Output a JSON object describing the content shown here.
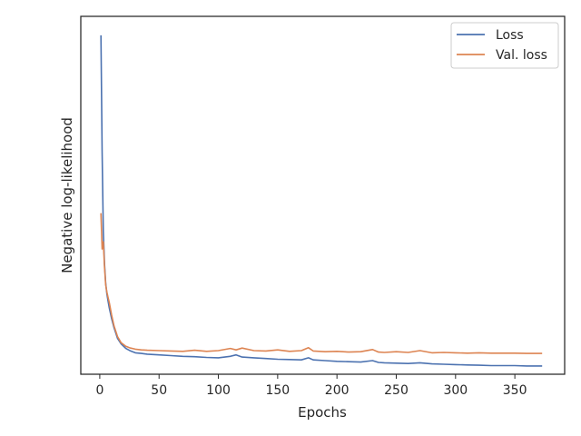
{
  "chart_data": {
    "type": "line",
    "title": "",
    "xlabel": "Epochs",
    "ylabel": "Negative log-likelihood",
    "xlim": [
      -16,
      392
    ],
    "ylim": [
      0,
      1
    ],
    "x_ticks": [
      0,
      50,
      100,
      150,
      200,
      250,
      300,
      350
    ],
    "x_tick_labels": [
      "0",
      "50",
      "100",
      "150",
      "200",
      "250",
      "300",
      "350"
    ],
    "y_ticks_shown": false,
    "grid": false,
    "legend_position": "top-right",
    "series": [
      {
        "name": "Loss",
        "color": "#4c72b0",
        "points": [
          [
            1,
            0.947
          ],
          [
            2,
            0.62
          ],
          [
            3,
            0.4
          ],
          [
            4,
            0.31
          ],
          [
            5,
            0.255
          ],
          [
            6,
            0.225
          ],
          [
            7,
            0.205
          ],
          [
            8,
            0.185
          ],
          [
            10,
            0.155
          ],
          [
            12,
            0.13
          ],
          [
            15,
            0.1
          ],
          [
            18,
            0.085
          ],
          [
            22,
            0.072
          ],
          [
            26,
            0.065
          ],
          [
            30,
            0.06
          ],
          [
            35,
            0.058
          ],
          [
            40,
            0.056
          ],
          [
            50,
            0.054
          ],
          [
            60,
            0.052
          ],
          [
            70,
            0.05
          ],
          [
            80,
            0.049
          ],
          [
            90,
            0.047
          ],
          [
            100,
            0.046
          ],
          [
            110,
            0.05
          ],
          [
            115,
            0.054
          ],
          [
            120,
            0.048
          ],
          [
            130,
            0.046
          ],
          [
            140,
            0.044
          ],
          [
            150,
            0.042
          ],
          [
            160,
            0.041
          ],
          [
            170,
            0.04
          ],
          [
            176,
            0.046
          ],
          [
            180,
            0.04
          ],
          [
            190,
            0.038
          ],
          [
            200,
            0.036
          ],
          [
            210,
            0.035
          ],
          [
            220,
            0.034
          ],
          [
            230,
            0.038
          ],
          [
            235,
            0.033
          ],
          [
            240,
            0.032
          ],
          [
            250,
            0.031
          ],
          [
            260,
            0.03
          ],
          [
            270,
            0.032
          ],
          [
            280,
            0.029
          ],
          [
            290,
            0.028
          ],
          [
            300,
            0.027
          ],
          [
            310,
            0.026
          ],
          [
            320,
            0.025
          ],
          [
            330,
            0.024
          ],
          [
            340,
            0.024
          ],
          [
            350,
            0.024
          ],
          [
            360,
            0.023
          ],
          [
            370,
            0.023
          ],
          [
            373,
            0.023
          ]
        ]
      },
      {
        "name": "Val. loss",
        "color": "#dd8452",
        "points": [
          [
            1,
            0.45
          ],
          [
            2,
            0.35
          ],
          [
            3,
            0.37
          ],
          [
            4,
            0.3
          ],
          [
            5,
            0.25
          ],
          [
            6,
            0.23
          ],
          [
            7,
            0.215
          ],
          [
            8,
            0.2
          ],
          [
            10,
            0.165
          ],
          [
            12,
            0.135
          ],
          [
            15,
            0.105
          ],
          [
            18,
            0.088
          ],
          [
            22,
            0.078
          ],
          [
            26,
            0.073
          ],
          [
            30,
            0.07
          ],
          [
            35,
            0.068
          ],
          [
            40,
            0.067
          ],
          [
            50,
            0.066
          ],
          [
            60,
            0.065
          ],
          [
            70,
            0.064
          ],
          [
            80,
            0.067
          ],
          [
            90,
            0.064
          ],
          [
            100,
            0.066
          ],
          [
            110,
            0.072
          ],
          [
            115,
            0.068
          ],
          [
            120,
            0.073
          ],
          [
            130,
            0.066
          ],
          [
            140,
            0.065
          ],
          [
            150,
            0.068
          ],
          [
            160,
            0.064
          ],
          [
            170,
            0.066
          ],
          [
            176,
            0.074
          ],
          [
            180,
            0.065
          ],
          [
            190,
            0.063
          ],
          [
            200,
            0.064
          ],
          [
            210,
            0.062
          ],
          [
            220,
            0.063
          ],
          [
            230,
            0.069
          ],
          [
            235,
            0.062
          ],
          [
            240,
            0.061
          ],
          [
            250,
            0.063
          ],
          [
            260,
            0.061
          ],
          [
            270,
            0.066
          ],
          [
            280,
            0.06
          ],
          [
            290,
            0.061
          ],
          [
            300,
            0.06
          ],
          [
            310,
            0.059
          ],
          [
            320,
            0.06
          ],
          [
            330,
            0.059
          ],
          [
            340,
            0.059
          ],
          [
            350,
            0.059
          ],
          [
            360,
            0.058
          ],
          [
            370,
            0.058
          ],
          [
            373,
            0.058
          ]
        ]
      }
    ]
  }
}
